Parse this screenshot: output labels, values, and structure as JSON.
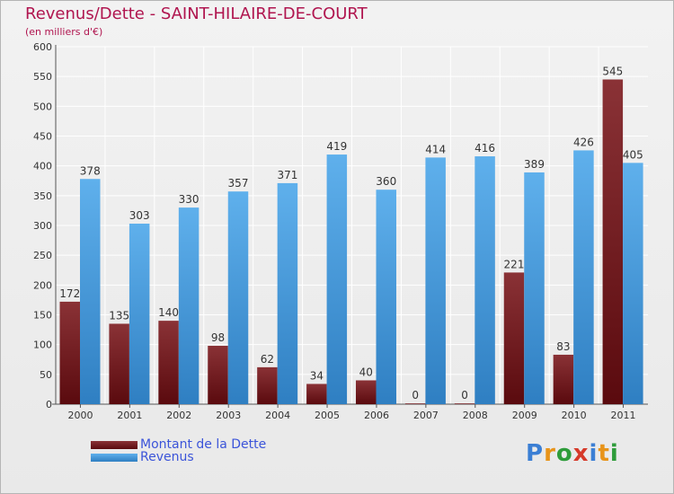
{
  "title": "Revenus/Dette - SAINT-HILAIRE-DE-COURT",
  "subtitle": "(en milliers d'€)",
  "logo": {
    "text": "Proxiti",
    "letter_colors": [
      "#3b7fd4",
      "#e8941a",
      "#2e9c3a",
      "#d63a2a",
      "#3b7fd4",
      "#e8941a",
      "#2e9c3a"
    ]
  },
  "colors": {
    "dette": "#7a1a1f",
    "revenus": "#4a9fe0",
    "tick_text": "#333333",
    "grid": "#ffffff"
  },
  "chart_data": {
    "type": "bar",
    "categories": [
      "2000",
      "2001",
      "2002",
      "2003",
      "2004",
      "2005",
      "2006",
      "2007",
      "2008",
      "2009",
      "2010",
      "2011"
    ],
    "series": [
      {
        "name": "Montant de la Dette",
        "values": [
          172,
          135,
          140,
          98,
          62,
          34,
          40,
          0,
          0,
          221,
          83,
          545
        ]
      },
      {
        "name": "Revenus",
        "values": [
          378,
          303,
          330,
          357,
          371,
          419,
          360,
          414,
          416,
          389,
          426,
          405
        ]
      }
    ],
    "ylim": [
      0,
      600
    ],
    "yticks": [
      0,
      50,
      100,
      150,
      200,
      250,
      300,
      350,
      400,
      450,
      500,
      550,
      600
    ],
    "grid": true,
    "legend_position": "bottom-left"
  }
}
